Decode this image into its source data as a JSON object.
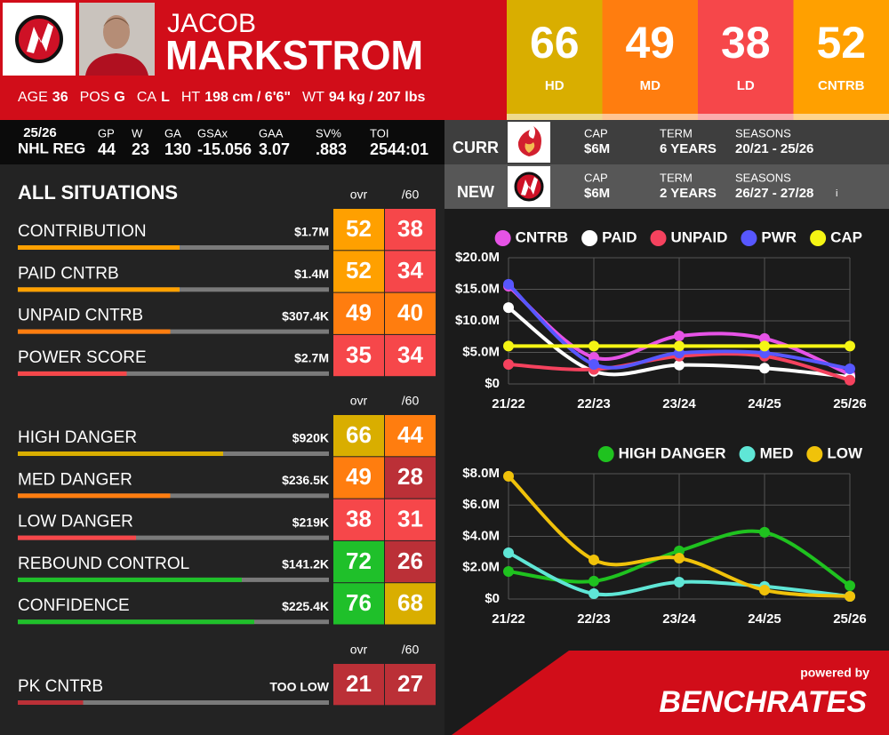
{
  "header": {
    "first_name": "JACOB",
    "last_name": "MARKSTROM",
    "bio": [
      {
        "label": "AGE",
        "value": "36"
      },
      {
        "label": "POS",
        "value": "G"
      },
      {
        "label": "CA",
        "value": "L"
      },
      {
        "label": "HT",
        "value": "198 cm / 6'6\""
      },
      {
        "label": "WT",
        "value": "94 kg / 207 lbs"
      }
    ]
  },
  "color_scale": [
    {
      "min": 0,
      "color": "#bb3037"
    },
    {
      "min": 30,
      "color": "#f6474a"
    },
    {
      "min": 40,
      "color": "#ff7d0f"
    },
    {
      "min": 50,
      "color": "#ffa000"
    },
    {
      "min": 60,
      "color": "#d9ae00"
    },
    {
      "min": 70,
      "color": "#1fc02a"
    }
  ],
  "scores": [
    {
      "value": 66,
      "label": "HD"
    },
    {
      "value": 49,
      "label": "MD"
    },
    {
      "value": 38,
      "label": "LD"
    },
    {
      "value": 52,
      "label": "CNTRB"
    }
  ],
  "season": {
    "season": "25/26",
    "league": "NHL REG",
    "stats": [
      {
        "label": "GP",
        "value": "44"
      },
      {
        "label": "W",
        "value": "23"
      },
      {
        "label": "GA",
        "value": "130"
      },
      {
        "label": "GSAx",
        "value": "-15.056"
      },
      {
        "label": "GAA",
        "value": "3.07"
      },
      {
        "label": "SV%",
        "value": ".883"
      },
      {
        "label": "TOI",
        "value": "2544:01"
      }
    ]
  },
  "contracts": [
    {
      "type": "CURR",
      "items": [
        {
          "label": "CAP",
          "value": "$6M"
        },
        {
          "label": "TERM",
          "value": "6 YEARS"
        },
        {
          "label": "SEASONS",
          "value": "20/21 - 25/26"
        }
      ]
    },
    {
      "type": "NEW",
      "items": [
        {
          "label": "CAP",
          "value": "$6M"
        },
        {
          "label": "TERM",
          "value": "2 YEARS"
        },
        {
          "label": "SEASONS",
          "value": "26/27 - 27/28"
        }
      ],
      "note": "i"
    }
  ],
  "sections": [
    {
      "title": "ALL SITUATIONS",
      "columns": [
        "ovr",
        "/60"
      ],
      "rows": [
        {
          "label": "CONTRIBUTION",
          "amount": "$1.7M",
          "ovr": 52,
          "per60": 38
        },
        {
          "label": "PAID CNTRB",
          "amount": "$1.4M",
          "ovr": 52,
          "per60": 34
        },
        {
          "label": "UNPAID CNTRB",
          "amount": "$307.4K",
          "ovr": 49,
          "per60": 40
        },
        {
          "label": "POWER SCORE",
          "amount": "$2.7M",
          "ovr": 35,
          "per60": 34
        }
      ]
    },
    {
      "columns": [
        "ovr",
        "/60"
      ],
      "rows": [
        {
          "label": "HIGH DANGER",
          "amount": "$920K",
          "ovr": 66,
          "per60": 44
        },
        {
          "label": "MED DANGER",
          "amount": "$236.5K",
          "ovr": 49,
          "per60": 28
        },
        {
          "label": "LOW DANGER",
          "amount": "$219K",
          "ovr": 38,
          "per60": 31
        },
        {
          "label": "REBOUND CONTROL",
          "amount": "$141.2K",
          "ovr": 72,
          "per60": 26
        },
        {
          "label": "CONFIDENCE",
          "amount": "$225.4K",
          "ovr": 76,
          "per60": 68
        }
      ]
    },
    {
      "columns": [
        "ovr",
        "/60"
      ],
      "rows": [
        {
          "label": "PK CNTRB",
          "amount": "TOO LOW",
          "ovr": 21,
          "per60": 27
        }
      ]
    }
  ],
  "chart_data": [
    {
      "type": "line",
      "categories": [
        "21/22",
        "22/23",
        "23/24",
        "24/25",
        "25/26"
      ],
      "ylim": [
        0,
        20000000
      ],
      "yticks": [
        {
          "value": 0,
          "label": "$0"
        },
        {
          "value": 5000000,
          "label": "$5.0M"
        },
        {
          "value": 10000000,
          "label": "$10.0M"
        },
        {
          "value": 15000000,
          "label": "$15.0M"
        },
        {
          "value": 20000000,
          "label": "$20.0M"
        }
      ],
      "grid": true,
      "legend": "top-right",
      "series": [
        {
          "name": "CNTRB",
          "color": "#e653e6",
          "values": [
            15500000,
            4200000,
            7600000,
            7200000,
            1500000
          ]
        },
        {
          "name": "PAID",
          "color": "#ffffff",
          "values": [
            12100000,
            2000000,
            3000000,
            2500000,
            1100000
          ]
        },
        {
          "name": "UNPAID",
          "color": "#f5425e",
          "values": [
            3100000,
            2300000,
            4400000,
            4400000,
            600000
          ]
        },
        {
          "name": "PWR",
          "color": "#5757ff",
          "values": [
            15800000,
            3100000,
            4900000,
            4900000,
            2400000
          ]
        },
        {
          "name": "CAP",
          "color": "#f5f514",
          "values": [
            6000000,
            6000000,
            6000000,
            6000000,
            6000000
          ]
        }
      ]
    },
    {
      "type": "line",
      "categories": [
        "21/22",
        "22/23",
        "23/24",
        "24/25",
        "25/26"
      ],
      "ylim": [
        0,
        8000000
      ],
      "yticks": [
        {
          "value": 0,
          "label": "$0"
        },
        {
          "value": 2000000,
          "label": "$2.0M"
        },
        {
          "value": 4000000,
          "label": "$4.0M"
        },
        {
          "value": 6000000,
          "label": "$6.0M"
        },
        {
          "value": 8000000,
          "label": "$8.0M"
        }
      ],
      "grid": true,
      "legend": "top-right",
      "series": [
        {
          "name": "HIGH DANGER",
          "color": "#1fc21f",
          "values": [
            1760000,
            1140000,
            3070000,
            4260000,
            850000
          ]
        },
        {
          "name": "MED",
          "color": "#5fe6d6",
          "values": [
            2950000,
            340000,
            1080000,
            800000,
            170000
          ]
        },
        {
          "name": "LOW",
          "color": "#f0c20a",
          "values": [
            7840000,
            2500000,
            2610000,
            570000,
            170000
          ]
        }
      ]
    }
  ],
  "footer": {
    "powered_by": "powered by",
    "brand": "BENCHRATES"
  }
}
